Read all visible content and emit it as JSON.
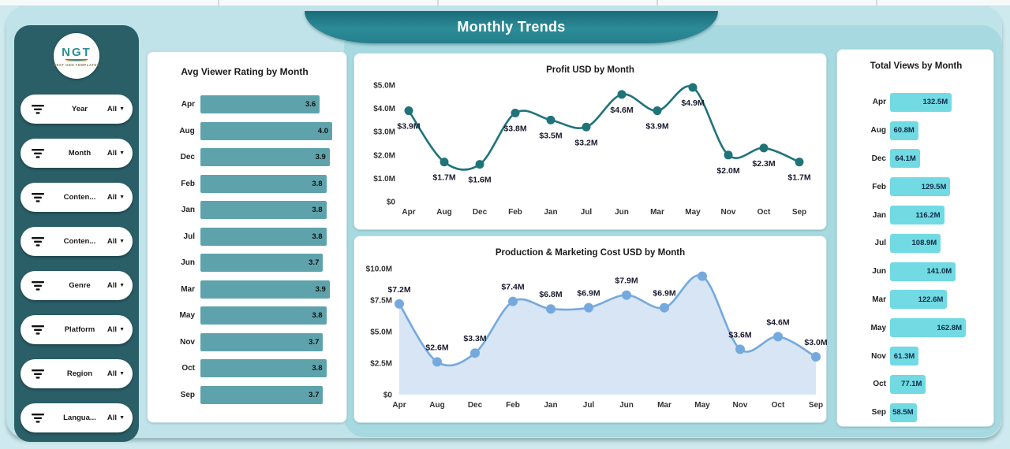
{
  "header": {
    "title": "Monthly Trends"
  },
  "logo": {
    "text": "NGT",
    "tagline": "NEXT GEN TEMPLATES"
  },
  "sidebar": {
    "filters": [
      {
        "label": "Year",
        "value": "All"
      },
      {
        "label": "Month",
        "value": "All"
      },
      {
        "label": "Conten...",
        "value": "All"
      },
      {
        "label": "Conten...",
        "value": "All"
      },
      {
        "label": "Genre",
        "value": "All"
      },
      {
        "label": "Platform",
        "value": "All"
      },
      {
        "label": "Region",
        "value": "All"
      },
      {
        "label": "Langua...",
        "value": "All"
      }
    ]
  },
  "colors": {
    "sidebar": "#2a5f68",
    "banner_dark": "#1a6b79",
    "banner_mid": "#2d8b98",
    "page_bg": "#bfe3e8",
    "backdrop": "#a7d9e0",
    "rating_bar": "#5ea3ac",
    "profit_line": "#1f747a",
    "cost_line": "#74a9de",
    "cost_fill": "#d8e5f4",
    "views_bar": "#71dae3"
  },
  "chart_data": [
    {
      "type": "bar",
      "orientation": "horizontal",
      "title": "Avg Viewer Rating by Month",
      "categories": [
        "Apr",
        "Aug",
        "Dec",
        "Feb",
        "Jan",
        "Jul",
        "Jun",
        "Mar",
        "May",
        "Nov",
        "Oct",
        "Sep"
      ],
      "values": [
        3.6,
        4.0,
        3.9,
        3.8,
        3.8,
        3.8,
        3.7,
        3.9,
        3.8,
        3.7,
        3.8,
        3.7
      ],
      "labels": [
        "3.6",
        "4.0",
        "3.9",
        "3.8",
        "3.8",
        "3.8",
        "3.7",
        "3.9",
        "3.8",
        "3.7",
        "3.8",
        "3.7"
      ],
      "xlim": [
        0,
        4.0
      ],
      "bar_color": "#5ea3ac",
      "legend": "none",
      "grid": false
    },
    {
      "type": "line",
      "title": "Profit USD by Month",
      "categories": [
        "Apr",
        "Aug",
        "Dec",
        "Feb",
        "Jan",
        "Jul",
        "Jun",
        "Mar",
        "May",
        "Nov",
        "Oct",
        "Sep"
      ],
      "values": [
        3.9,
        1.7,
        1.6,
        3.8,
        3.5,
        3.2,
        4.6,
        3.9,
        4.9,
        2.0,
        2.3,
        1.7
      ],
      "labels": [
        "$3.9M",
        "$1.7M",
        "$1.6M",
        "$3.8M",
        "$3.5M",
        "$3.2M",
        "$4.6M",
        "$3.9M",
        "$4.9M",
        "$2.0M",
        "$2.3M",
        "$1.7M"
      ],
      "ylim": [
        0,
        5
      ],
      "yticks": [
        "$0",
        "$1.0M",
        "$2.0M",
        "$3.0M",
        "$4.0M",
        "$5.0M"
      ],
      "line_color": "#1f747a",
      "legend": "none",
      "grid": false
    },
    {
      "type": "area",
      "title": "Production & Marketing Cost USD by Month",
      "categories": [
        "Apr",
        "Aug",
        "Dec",
        "Feb",
        "Jan",
        "Jul",
        "Jun",
        "Mar",
        "May",
        "Nov",
        "Oct",
        "Sep"
      ],
      "values": [
        7.2,
        2.6,
        3.3,
        7.4,
        6.8,
        6.9,
        7.9,
        6.9,
        9.4,
        3.6,
        4.6,
        3.0
      ],
      "labels": [
        "$7.2M",
        "$2.6M",
        "$3.3M",
        "$7.4M",
        "$6.8M",
        "$6.9M",
        "$7.9M",
        "$6.9M",
        "",
        "$3.6M",
        "$4.6M",
        "$3.0M"
      ],
      "ylim": [
        0,
        10
      ],
      "yticks": [
        "$0",
        "$2.5M",
        "$5.0M",
        "$7.5M",
        "$10.0M"
      ],
      "line_color": "#74a9de",
      "fill_color": "#d8e5f4",
      "legend": "none",
      "grid": false
    },
    {
      "type": "bar",
      "orientation": "horizontal",
      "title": "Total Views by Month",
      "categories": [
        "Apr",
        "Aug",
        "Dec",
        "Feb",
        "Jan",
        "Jul",
        "Jun",
        "Mar",
        "May",
        "Nov",
        "Oct",
        "Sep"
      ],
      "values": [
        132.5,
        60.8,
        64.1,
        129.5,
        116.2,
        108.9,
        141.0,
        122.6,
        162.8,
        61.3,
        77.1,
        58.5
      ],
      "labels": [
        "132.5M",
        "60.8M",
        "64.1M",
        "129.5M",
        "116.2M",
        "108.9M",
        "141.0M",
        "122.6M",
        "162.8M",
        "61.3M",
        "77.1M",
        "58.5M"
      ],
      "xlim": [
        0,
        162.8
      ],
      "bar_color": "#71dae3",
      "legend": "none",
      "grid": false
    }
  ]
}
